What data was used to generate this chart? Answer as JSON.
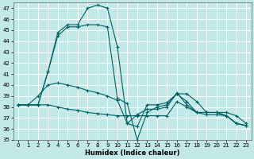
{
  "xlabel": "Humidex (Indice chaleur)",
  "xlim": [
    -0.5,
    23.5
  ],
  "ylim": [
    35,
    47.5
  ],
  "yticks": [
    35,
    36,
    37,
    38,
    39,
    40,
    41,
    42,
    43,
    44,
    45,
    46,
    47
  ],
  "xticks": [
    0,
    1,
    2,
    3,
    4,
    5,
    6,
    7,
    8,
    9,
    10,
    11,
    12,
    13,
    14,
    15,
    16,
    17,
    18,
    19,
    20,
    21,
    22,
    23
  ],
  "bg_color": "#c2e8e8",
  "line_color": "#006060",
  "grid_color": "#ffffff",
  "lines": [
    {
      "x": [
        0,
        1,
        2,
        3,
        4,
        5,
        6,
        7,
        8,
        9,
        10,
        11,
        12,
        13,
        14,
        15,
        16,
        17,
        18,
        19,
        20,
        21,
        22,
        23
      ],
      "y": [
        38.2,
        38.2,
        38.2,
        41.2,
        44.8,
        45.5,
        45.5,
        47.0,
        47.3,
        47.0,
        43.5,
        36.5,
        36.2,
        38.2,
        38.2,
        38.4,
        39.2,
        39.2,
        38.5,
        37.5,
        37.5,
        37.5,
        37.2,
        36.5
      ]
    },
    {
      "x": [
        0,
        1,
        2,
        3,
        4,
        5,
        6,
        7,
        8,
        9,
        10,
        11,
        12,
        13,
        14,
        15,
        16,
        17,
        18,
        19,
        20,
        21,
        22,
        23
      ],
      "y": [
        38.2,
        38.2,
        38.2,
        41.2,
        44.5,
        45.3,
        45.3,
        45.5,
        45.5,
        45.3,
        38.8,
        38.3,
        35.0,
        37.5,
        38.0,
        38.2,
        39.2,
        38.5,
        37.5,
        37.5,
        37.5,
        37.2,
        36.5,
        36.3
      ]
    },
    {
      "x": [
        0,
        1,
        2,
        3,
        4,
        5,
        6,
        7,
        8,
        9,
        10,
        11,
        12,
        13,
        14,
        15,
        16,
        17,
        18,
        19,
        20,
        21,
        22,
        23
      ],
      "y": [
        38.2,
        38.2,
        39.0,
        40.0,
        40.2,
        40.0,
        39.8,
        39.5,
        39.3,
        39.0,
        38.6,
        36.5,
        37.3,
        37.8,
        37.8,
        38.0,
        39.3,
        38.2,
        37.5,
        37.5,
        37.5,
        37.2,
        36.5,
        36.3
      ]
    },
    {
      "x": [
        0,
        1,
        2,
        3,
        4,
        5,
        6,
        7,
        8,
        9,
        10,
        11,
        12,
        13,
        14,
        15,
        16,
        17,
        18,
        19,
        20,
        21,
        22,
        23
      ],
      "y": [
        38.2,
        38.2,
        38.2,
        38.2,
        38.0,
        37.8,
        37.7,
        37.5,
        37.4,
        37.3,
        37.2,
        37.2,
        37.2,
        37.2,
        37.2,
        37.2,
        38.5,
        38.0,
        37.5,
        37.3,
        37.3,
        37.2,
        36.5,
        36.3
      ]
    }
  ]
}
